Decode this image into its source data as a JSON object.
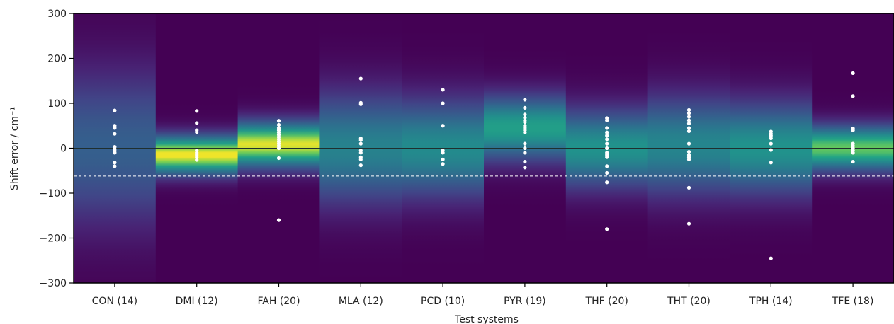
{
  "chart_data": {
    "type": "heatmap",
    "xlabel": "Test systems",
    "ylabel": "Shift error / cm⁻¹",
    "ylim": [
      -300,
      300
    ],
    "yticks": [
      300,
      200,
      100,
      0,
      -100,
      -200,
      -300
    ],
    "ytick_labels": [
      "300",
      "200",
      "100",
      "0",
      "−100",
      "−200",
      "−300"
    ],
    "reference_lines": {
      "zero": 0,
      "dashed_upper": 63,
      "dashed_lower": -62
    },
    "colormap": "viridis",
    "colors": {
      "background": "#440154",
      "points": "#ffffff",
      "dashed": "#ffffff",
      "zero_line": "#1f2f2f"
    },
    "categories": [
      "CON (14)",
      "DMI (12)",
      "FAH (20)",
      "MLA (12)",
      "PCD (10)",
      "PYR (19)",
      "THF (20)",
      "THT (20)",
      "TPH (14)",
      "TFE (18)"
    ],
    "series": [
      {
        "category": "CON (14)",
        "density_center": 0,
        "density_width": 120,
        "density_peak": 0.38,
        "points": [
          84,
          50,
          45,
          32,
          3,
          -2,
          -6,
          -10,
          -32,
          -40
        ]
      },
      {
        "category": "DMI (12)",
        "density_center": -15,
        "density_width": 30,
        "density_peak": 1.0,
        "points": [
          83,
          56,
          40,
          36,
          -5,
          -10,
          -15,
          -20,
          -26
        ]
      },
      {
        "category": "FAH (20)",
        "density_center": 8,
        "density_width": 35,
        "density_peak": 0.98,
        "points": [
          61,
          52,
          45,
          40,
          35,
          30,
          25,
          20,
          15,
          10,
          5,
          0,
          -22,
          -160
        ]
      },
      {
        "category": "MLA (12)",
        "density_center": 0,
        "density_width": 85,
        "density_peak": 0.55,
        "points": [
          155,
          101,
          98,
          22,
          18,
          10,
          -5,
          -10,
          -20,
          -25,
          -38
        ]
      },
      {
        "category": "PCD (10)",
        "density_center": 0,
        "density_width": 75,
        "density_peak": 0.6,
        "points": [
          130,
          100,
          50,
          -5,
          -10,
          -25,
          -35
        ]
      },
      {
        "category": "PYR (19)",
        "density_center": 45,
        "density_width": 50,
        "density_peak": 0.7,
        "points": [
          108,
          90,
          75,
          68,
          62,
          58,
          50,
          45,
          40,
          35,
          10,
          0,
          -10,
          -30,
          -43
        ]
      },
      {
        "category": "THF (20)",
        "density_center": 0,
        "density_width": 60,
        "density_peak": 0.64,
        "points": [
          67,
          62,
          45,
          35,
          28,
          20,
          10,
          0,
          -10,
          -15,
          -20,
          -40,
          -55,
          -76,
          -180
        ]
      },
      {
        "category": "THT (20)",
        "density_center": 5,
        "density_width": 75,
        "density_peak": 0.57,
        "points": [
          85,
          78,
          70,
          62,
          55,
          45,
          38,
          10,
          -8,
          -15,
          -20,
          -25,
          -88,
          -168
        ]
      },
      {
        "category": "TPH (14)",
        "density_center": 0,
        "density_width": 70,
        "density_peak": 0.64,
        "points": [
          37,
          32,
          28,
          22,
          10,
          -4,
          -32,
          -245
        ]
      },
      {
        "category": "TFE (18)",
        "density_center": 0,
        "density_width": 35,
        "density_peak": 0.85,
        "points": [
          167,
          116,
          44,
          40,
          10,
          5,
          0,
          -5,
          -10,
          -30
        ]
      }
    ]
  }
}
